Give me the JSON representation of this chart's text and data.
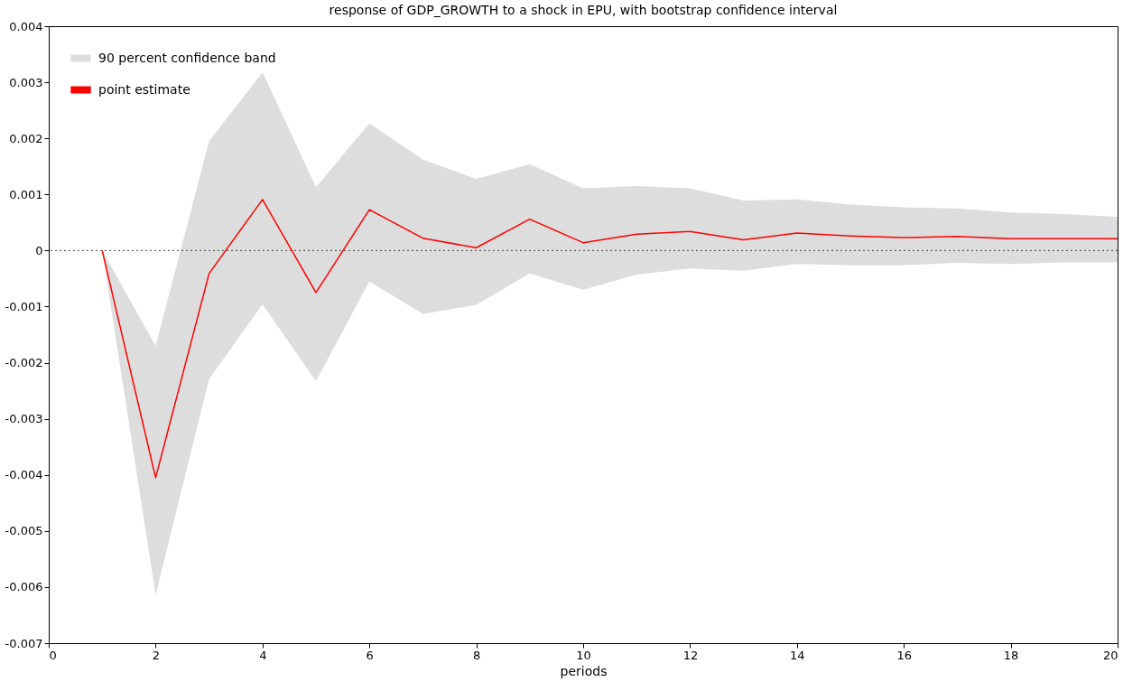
{
  "chart_data": {
    "type": "line",
    "title": "response of GDP_GROWTH to a shock in EPU, with bootstrap confidence interval",
    "xlabel": "periods",
    "x": [
      1,
      2,
      3,
      4,
      5,
      6,
      7,
      8,
      9,
      10,
      11,
      12,
      13,
      14,
      15,
      16,
      17,
      18,
      19,
      20
    ],
    "series": [
      {
        "name": "90 percent confidence band",
        "type": "area",
        "color": "#dddddd",
        "values": [
          null,
          null,
          null,
          null,
          null,
          null,
          null,
          null,
          null,
          null,
          null,
          null,
          null,
          null,
          null,
          null,
          null,
          null,
          null,
          null
        ],
        "upper": [
          0,
          -0.0017,
          0.00195,
          0.00318,
          0.00113,
          0.00227,
          0.00162,
          0.00128,
          0.00154,
          0.00111,
          0.00115,
          0.00111,
          0.00089,
          0.00091,
          0.00082,
          0.00077,
          0.00075,
          0.00068,
          0.00065,
          0.0006
        ],
        "lower": [
          0,
          -0.00614,
          -0.00229,
          -0.00096,
          -0.00233,
          -0.00055,
          -0.00113,
          -0.00097,
          -0.00041,
          -0.0007,
          -0.00043,
          -0.00032,
          -0.00036,
          -0.00024,
          -0.00026,
          -0.00026,
          -0.00022,
          -0.00024,
          -0.00021,
          -0.00021
        ]
      },
      {
        "name": "point estimate",
        "color": "#ff0000",
        "values": [
          0,
          -0.00405,
          -0.00041,
          0.00091,
          -0.00075,
          0.00073,
          0.00022,
          5e-05,
          0.00056,
          0.00014,
          0.00029,
          0.00034,
          0.00019,
          0.00031,
          0.00026,
          0.00023,
          0.00025,
          0.00021,
          0.00021,
          0.00021
        ]
      }
    ],
    "xlim": [
      0,
      20
    ],
    "xticks": [
      0,
      2,
      4,
      6,
      8,
      10,
      12,
      14,
      16,
      18,
      20
    ],
    "ylim": [
      -0.007,
      0.004
    ],
    "yticks": [
      -0.007,
      -0.006,
      -0.005,
      -0.004,
      -0.003,
      -0.002,
      -0.001,
      0,
      0.001,
      0.002,
      0.003,
      0.004
    ],
    "ref_lines": [
      {
        "axis": "y",
        "value": 0,
        "color": "#404040",
        "line_style": "dotted"
      }
    ],
    "grid": false,
    "legend": "top left",
    "line_style": "solid",
    "marker": "none"
  }
}
